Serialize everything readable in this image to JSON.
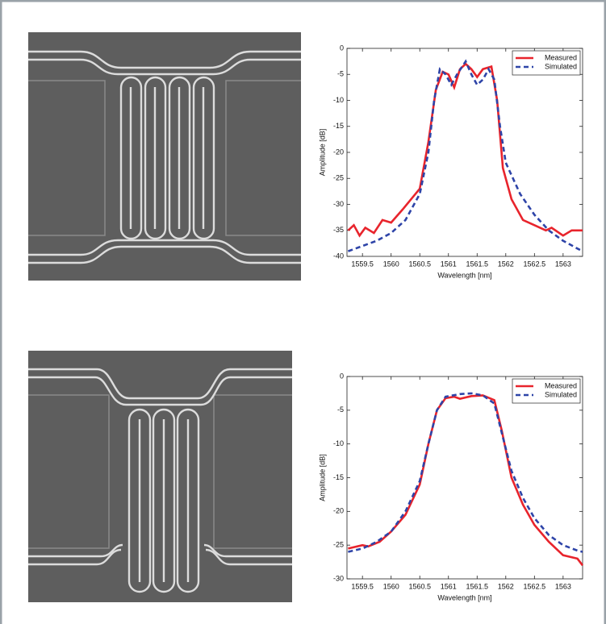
{
  "chart_data": [
    {
      "type": "line",
      "x_label": "Wavelength [nm]",
      "y_label": "Amplitude [dB]",
      "xlim": [
        1559.23,
        1563.34
      ],
      "ylim": [
        -40,
        0
      ],
      "xticks": [
        1559.5,
        1560,
        1560.5,
        1561,
        1561.5,
        1562,
        1562.5,
        1563
      ],
      "yticks": [
        -40,
        -35,
        -30,
        -25,
        -20,
        -15,
        -10,
        -5,
        0
      ],
      "legend": "upper right",
      "series": [
        {
          "name": "Measured",
          "color": "#e8242c",
          "linestyle": "solid",
          "x": [
            1559.25,
            1559.35,
            1559.45,
            1559.55,
            1559.7,
            1559.85,
            1560,
            1560.2,
            1560.5,
            1560.65,
            1560.78,
            1560.9,
            1561,
            1561.1,
            1561.2,
            1561.3,
            1561.4,
            1561.5,
            1561.6,
            1561.75,
            1561.85,
            1561.95,
            1562.1,
            1562.3,
            1562.5,
            1562.7,
            1562.8,
            1563,
            1563.15,
            1563.34
          ],
          "values": [
            -35,
            -34,
            -36,
            -34.5,
            -35.5,
            -33,
            -33.5,
            -31,
            -27,
            -18,
            -8,
            -4.5,
            -5,
            -7.5,
            -4,
            -3,
            -4,
            -5.5,
            -4,
            -3.5,
            -10,
            -23,
            -29,
            -33,
            -34,
            -35,
            -34.5,
            -36,
            -35,
            -35
          ]
        },
        {
          "name": "Simulated",
          "color": "#2e44a8",
          "linestyle": "dashed",
          "x": [
            1559.25,
            1559.5,
            1559.75,
            1560,
            1560.25,
            1560.5,
            1560.65,
            1560.75,
            1560.85,
            1560.95,
            1561.05,
            1561.15,
            1561.3,
            1561.4,
            1561.5,
            1561.6,
            1561.7,
            1561.8,
            1561.9,
            1562,
            1562.25,
            1562.5,
            1562.75,
            1563,
            1563.25,
            1563.34
          ],
          "values": [
            -39,
            -38,
            -37,
            -35.5,
            -33,
            -28,
            -20,
            -10,
            -4,
            -5,
            -7,
            -5,
            -2.5,
            -5,
            -7,
            -6,
            -4,
            -6,
            -15,
            -22,
            -28,
            -32,
            -35,
            -37,
            -38.5,
            -39
          ]
        }
      ]
    },
    {
      "type": "line",
      "x_label": "Wavelength [nm]",
      "y_label": "Amplitude [dB]",
      "xlim": [
        1559.23,
        1563.34
      ],
      "ylim": [
        -30,
        0
      ],
      "xticks": [
        1559.5,
        1560,
        1560.5,
        1561,
        1561.5,
        1562,
        1562.5,
        1563
      ],
      "yticks": [
        -30,
        -25,
        -20,
        -15,
        -10,
        -5,
        0
      ],
      "legend": "upper right",
      "series": [
        {
          "name": "Measured",
          "color": "#e8242c",
          "linestyle": "solid",
          "x": [
            1559.25,
            1559.5,
            1559.6,
            1559.8,
            1560,
            1560.25,
            1560.5,
            1560.65,
            1560.8,
            1560.95,
            1561.1,
            1561.2,
            1561.4,
            1561.6,
            1561.8,
            1561.93,
            1562.1,
            1562.3,
            1562.5,
            1562.75,
            1563,
            1563.25,
            1563.34
          ],
          "values": [
            -25.5,
            -25,
            -25.2,
            -24.5,
            -23,
            -20.5,
            -16,
            -10,
            -5,
            -3.2,
            -3,
            -3.3,
            -2.9,
            -2.8,
            -3.5,
            -8,
            -15,
            -19,
            -22,
            -24.5,
            -26.5,
            -27,
            -28
          ]
        },
        {
          "name": "Simulated",
          "color": "#2e44a8",
          "linestyle": "dashed",
          "x": [
            1559.25,
            1559.5,
            1559.75,
            1560,
            1560.25,
            1560.5,
            1560.65,
            1560.8,
            1560.95,
            1561.2,
            1561.4,
            1561.6,
            1561.8,
            1561.95,
            1562.1,
            1562.3,
            1562.5,
            1562.75,
            1563,
            1563.25,
            1563.34
          ],
          "values": [
            -26,
            -25.5,
            -24.5,
            -23,
            -20,
            -15.5,
            -10,
            -5,
            -3,
            -2.6,
            -2.5,
            -2.8,
            -4,
            -9,
            -14,
            -18,
            -21,
            -23.5,
            -25,
            -25.8,
            -26
          ]
        }
      ]
    }
  ]
}
